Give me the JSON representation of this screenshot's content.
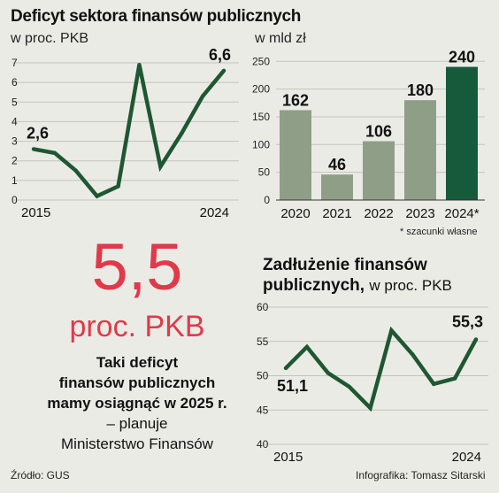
{
  "chart_data": [
    {
      "type": "line",
      "title": "Deficyt sektora finansów publicznych",
      "subtitle": "w proc. PKB",
      "x": [
        2015,
        2016,
        2017,
        2018,
        2019,
        2020,
        2021,
        2022,
        2023,
        2024
      ],
      "values": [
        2.6,
        2.4,
        1.5,
        0.2,
        0.7,
        6.9,
        1.7,
        3.4,
        5.3,
        6.6
      ],
      "x_tick_labels": [
        "2015",
        "2024"
      ],
      "ylim": [
        0,
        7
      ],
      "y_ticks": [
        "0",
        "1",
        "2",
        "3",
        "4",
        "5",
        "6",
        "7"
      ],
      "annotations": [
        "2,6",
        "6,6"
      ],
      "color": "#1e5732",
      "grid": true
    },
    {
      "type": "bar",
      "subtitle": "w mld zł",
      "categories": [
        "2020",
        "2021",
        "2022",
        "2023",
        "2024*"
      ],
      "values": [
        162,
        46,
        106,
        180,
        240
      ],
      "value_labels": [
        "162",
        "46",
        "106",
        "180",
        "240"
      ],
      "ylim": [
        0,
        260
      ],
      "y_ticks": [
        "0",
        "50",
        "100",
        "150",
        "200",
        "250"
      ],
      "colors": [
        "#8f9f87",
        "#8f9f87",
        "#8f9f87",
        "#8f9f87",
        "#165a3c"
      ],
      "footnote": "* szacunki własne",
      "grid": true
    },
    {
      "type": "line",
      "title": "Zadłużenie finansów publicznych,",
      "subtitle": "w proc. PKB",
      "x": [
        2015,
        2016,
        2017,
        2018,
        2019,
        2020,
        2021,
        2022,
        2023,
        2024
      ],
      "values": [
        51.1,
        54.2,
        50.4,
        48.4,
        45.3,
        56.6,
        53.1,
        48.8,
        49.6,
        55.3
      ],
      "x_tick_labels": [
        "2015",
        "2024"
      ],
      "ylim": [
        40,
        60
      ],
      "y_ticks": [
        "40",
        "45",
        "50",
        "55",
        "60"
      ],
      "annotations": [
        "51,1",
        "55,3"
      ],
      "color": "#1e5732",
      "grid": true
    }
  ],
  "headline": {
    "number": "5,5",
    "unit": "proc. PKB",
    "desc_lines_bold": [
      "Taki deficyt",
      "finansów publicznych",
      "mamy osiągnąć w 2025 r."
    ],
    "desc_lines_plain": [
      "– planuje",
      "Ministerstwo Finansów"
    ]
  },
  "footer": {
    "source": "Źródło: GUS",
    "credit": "Infografika: Tomasz Sitarski"
  }
}
